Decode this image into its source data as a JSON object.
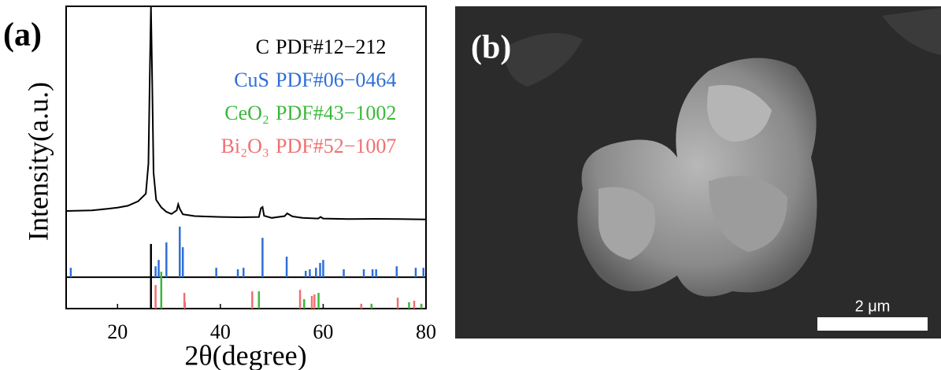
{
  "panels": {
    "a_label": "(a)",
    "b_label": "(b)",
    "scale_bar": "2 μm"
  },
  "chart_data": {
    "type": "line",
    "xlabel": "2θ(degree)",
    "ylabel": "Intensity(a.u.)",
    "xlim": [
      10,
      80
    ],
    "xticks": [
      20,
      40,
      60,
      80
    ],
    "ylim": [
      0,
      100
    ],
    "series": [
      {
        "color": "#000000",
        "x": [
          10,
          15,
          18,
          20,
          22,
          24,
          25.5,
          26,
          26.3,
          26.5,
          26.7,
          27,
          27.5,
          28.5,
          29.5,
          30.5,
          31.5,
          31.8,
          32.1,
          32.7,
          35,
          40,
          44,
          47.5,
          47.9,
          48.2,
          48.5,
          50,
          52.5,
          53,
          54,
          56,
          59,
          59.5,
          60,
          65,
          70,
          75,
          80
        ],
        "values": [
          32.3,
          32.5,
          33,
          33.4,
          34,
          35.5,
          38,
          48,
          80,
          100,
          80,
          45,
          36,
          33.5,
          32,
          31.3,
          32.5,
          34.5,
          33,
          31.2,
          30.6,
          30.3,
          30.2,
          30.3,
          33.2,
          33.6,
          30.7,
          30,
          30.6,
          31.5,
          30.5,
          30,
          29.8,
          30.3,
          29.8,
          29.6,
          29.7,
          29.6,
          29.5
        ]
      }
    ],
    "reference_patterns": [
      {
        "name": "C",
        "pdf": "PDF#12−212",
        "color": "#000000",
        "offset": 0,
        "x": [
          26.5
        ],
        "values": [
          21.4
        ]
      },
      {
        "name": "CuS",
        "pdf": "PDF#06−0464",
        "color": "#2f6fd6",
        "offset": 10.4,
        "x": [
          10.9,
          27.4,
          28,
          29.5,
          32.1,
          32.7,
          39.2,
          43.4,
          44.5,
          48.2,
          52.9,
          56.6,
          57.4,
          58.6,
          59.4,
          60,
          64,
          67.9,
          69.6,
          70.3,
          74.3,
          78,
          79.5
        ],
        "values": [
          3.1,
          3.6,
          5.7,
          11.5,
          16.7,
          9.9,
          3.1,
          2.6,
          3.1,
          13,
          6.8,
          2.1,
          2.6,
          3.1,
          4.7,
          5.7,
          2.6,
          2.6,
          2.6,
          2.6,
          3.6,
          3.1,
          3.1
        ]
      },
      {
        "name": "CeO₂",
        "pdf": "PDF#43−1002",
        "color": "#3cb83c",
        "offset": 0,
        "x": [
          28.5,
          33.1,
          47.5,
          56.3,
          59.1,
          69.4,
          76.7,
          79.1
        ],
        "values": [
          12.2,
          2.1,
          5.7,
          3.1,
          5.2,
          1.6,
          2.1,
          1.6
        ]
      },
      {
        "name": "Bi₂O₃",
        "pdf": "PDF#52−1007",
        "color": "#f07070",
        "offset": 0,
        "x": [
          27.4,
          33,
          46.2,
          55.5,
          57.8,
          58.3,
          67.4,
          74.5,
          77.7
        ],
        "values": [
          7.8,
          5.2,
          5.7,
          6.2,
          4.2,
          4.7,
          1.6,
          3.6,
          2.6
        ]
      }
    ]
  }
}
